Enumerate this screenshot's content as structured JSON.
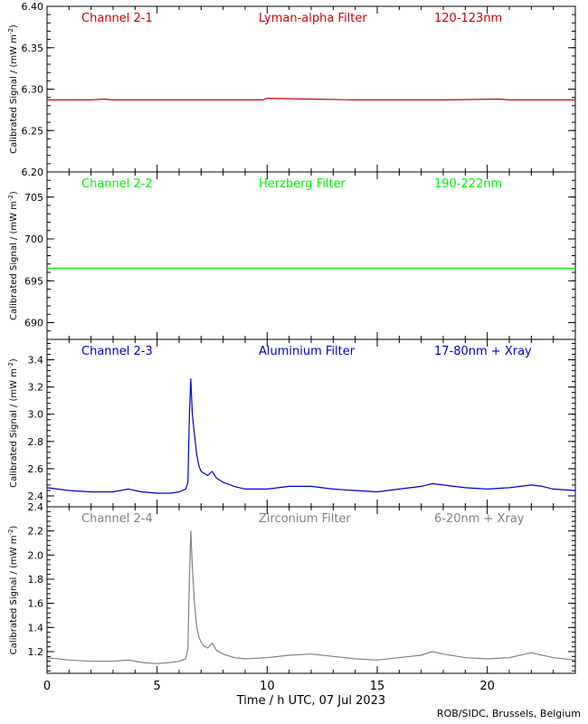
{
  "chart_data": {
    "type": "line",
    "xlabel": "Time / h UTC, 07 Jul 2023",
    "xlim": [
      0,
      24
    ],
    "x_ticks": [
      0,
      5,
      10,
      15,
      20
    ],
    "credit": "ROB/SIDC, Brussels, Belgium",
    "ylabel_main": "Calibrated Signal / (mW m",
    "ylabel_exp": "-2",
    "ylabel_close": ")",
    "panels": [
      {
        "name": "Channel 2-1",
        "filter": "Lyman-alpha Filter",
        "band": "120-123nm",
        "color": "#cc0000",
        "ylim": [
          6.2,
          6.4
        ],
        "y_ticks": [
          "6.20",
          "6.25",
          "6.30",
          "6.35",
          "6.40"
        ],
        "series": [
          {
            "x": [
              0,
              2,
              2.6,
              3,
              6,
              8,
              9.8,
              10,
              12,
              14,
              16,
              18,
              20.6,
              21,
              22,
              24
            ],
            "y": [
              6.287,
              6.287,
              6.288,
              6.287,
              6.287,
              6.287,
              6.287,
              6.289,
              6.288,
              6.287,
              6.287,
              6.287,
              6.288,
              6.287,
              6.287,
              6.287
            ]
          }
        ]
      },
      {
        "name": "Channel 2-2",
        "filter": "Herzberg Filter",
        "band": "190-222nm",
        "color": "#00ee00",
        "ylim": [
          688,
          708
        ],
        "y_ticks": [
          "690",
          "695",
          "700",
          "705"
        ],
        "series": [
          {
            "x": [
              0,
              4,
              8,
              12,
              16,
              20,
              24
            ],
            "y": [
              696.5,
              696.5,
              696.5,
              696.5,
              696.5,
              696.5,
              696.5
            ]
          }
        ]
      },
      {
        "name": "Channel 2-3",
        "filter": "Aluminium Filter",
        "band": "17-80nm + Xray",
        "color": "#0000cc",
        "ylim": [
          2.32,
          3.55
        ],
        "y_ticks": [
          "2.4",
          "2.6",
          "2.8",
          "3.0",
          "3.2",
          "3.4"
        ],
        "series": [
          {
            "x": [
              0,
              1,
              2,
              3,
              3.7,
              4.3,
              5,
              5.6,
              6,
              6.3,
              6.4,
              6.47,
              6.53,
              6.6,
              6.7,
              6.8,
              6.9,
              7.0,
              7.1,
              7.3,
              7.5,
              7.7,
              8.0,
              8.5,
              9,
              10,
              11,
              12,
              13,
              14,
              15,
              16,
              16.5,
              17,
              17.5,
              18,
              19,
              20,
              21,
              22,
              22.5,
              23,
              24
            ],
            "y": [
              2.46,
              2.44,
              2.43,
              2.43,
              2.45,
              2.43,
              2.42,
              2.42,
              2.43,
              2.45,
              2.5,
              3.0,
              3.26,
              3.0,
              2.85,
              2.7,
              2.62,
              2.58,
              2.57,
              2.55,
              2.58,
              2.53,
              2.5,
              2.47,
              2.45,
              2.45,
              2.47,
              2.47,
              2.45,
              2.44,
              2.43,
              2.45,
              2.46,
              2.47,
              2.49,
              2.48,
              2.46,
              2.45,
              2.46,
              2.48,
              2.47,
              2.45,
              2.44
            ]
          }
        ]
      },
      {
        "name": "Channel 2-4",
        "filter": "Zirconium Filter",
        "band": "6-20nm + Xray",
        "color": "#808080",
        "ylim": [
          1.02,
          2.4
        ],
        "y_ticks": [
          "1.2",
          "1.4",
          "1.6",
          "1.8",
          "2.0",
          "2.2",
          "2.4"
        ],
        "series": [
          {
            "x": [
              0,
              1,
              2,
              3,
              3.7,
              4.3,
              5,
              5.6,
              6,
              6.3,
              6.4,
              6.47,
              6.53,
              6.6,
              6.7,
              6.8,
              6.9,
              7.0,
              7.1,
              7.3,
              7.5,
              7.7,
              8.0,
              8.5,
              9,
              10,
              11,
              12,
              13,
              14,
              15,
              16,
              16.5,
              17,
              17.5,
              18,
              19,
              20,
              21,
              22,
              22.5,
              23,
              24
            ],
            "y": [
              1.15,
              1.13,
              1.12,
              1.12,
              1.13,
              1.11,
              1.1,
              1.11,
              1.12,
              1.14,
              1.22,
              1.8,
              2.2,
              1.9,
              1.6,
              1.4,
              1.32,
              1.28,
              1.25,
              1.23,
              1.27,
              1.21,
              1.18,
              1.15,
              1.14,
              1.15,
              1.17,
              1.18,
              1.16,
              1.14,
              1.13,
              1.15,
              1.16,
              1.17,
              1.2,
              1.18,
              1.15,
              1.14,
              1.15,
              1.19,
              1.17,
              1.15,
              1.13
            ]
          }
        ]
      }
    ]
  }
}
